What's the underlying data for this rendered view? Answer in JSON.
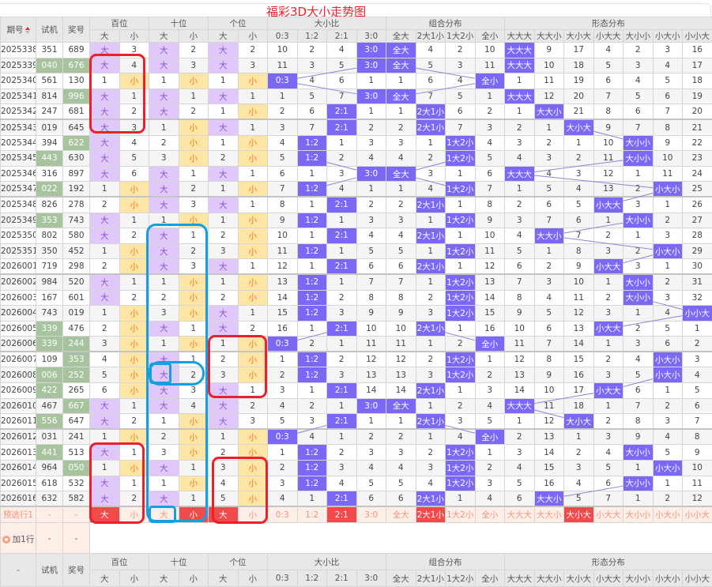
{
  "title": "福彩3D大小走势图",
  "header": {
    "issue": "期号",
    "test": "试机",
    "draw": "奖号",
    "groups": [
      "百位",
      "十位",
      "个位",
      "大小比",
      "组合分布",
      "形态分布"
    ],
    "sub": [
      "大",
      "小",
      "大",
      "小",
      "大",
      "小",
      "0:3",
      "1:2",
      "2:1",
      "3:0",
      "全大",
      "2大1小",
      "1大2小",
      "全小",
      "大大大",
      "大大小",
      "大小大",
      "小大大",
      "大小小",
      "小大小",
      "小小大"
    ],
    "sort_icon": "sort-arrows-icon"
  },
  "colors": {
    "big_hit": "#e1c8fb",
    "small_hit": "#fde5a6",
    "hit": "#7b68f5",
    "match": "#a7c49f",
    "selected": "#f04a4a",
    "trend_line": "#8c84d8",
    "annotation_red": "#e8222a",
    "annotation_blue": "#14a0e0"
  },
  "rows": [
    {
      "issue": "2025338",
      "test": "351",
      "draw": "689",
      "test_hl": false,
      "draw_hl": false,
      "cells": [
        "大",
        "3",
        "大",
        "2",
        "大",
        "2",
        "10",
        "2",
        "4",
        "3:0",
        "全大",
        "4",
        "2",
        "10",
        "大大大",
        "9",
        "17",
        "4",
        "2",
        "3",
        "16"
      ]
    },
    {
      "issue": "2025339",
      "test": "040",
      "draw": "676",
      "test_hl": true,
      "draw_hl": true,
      "cells": [
        "大",
        "4",
        "大",
        "3",
        "大",
        "3",
        "11",
        "3",
        "5",
        "3:0",
        "全大",
        "5",
        "3",
        "11",
        "大大大",
        "10",
        "18",
        "5",
        "3",
        "4",
        "17"
      ]
    },
    {
      "issue": "2025340",
      "test": "561",
      "draw": "130",
      "test_hl": false,
      "draw_hl": false,
      "cells": [
        "1",
        "小",
        "1",
        "小",
        "1",
        "小",
        "0:3",
        "4",
        "6",
        "1",
        "1",
        "6",
        "4",
        "全小",
        "1",
        "11",
        "19",
        "6",
        "4",
        "5",
        "18"
      ]
    },
    {
      "issue": "2025341",
      "test": "814",
      "draw": "996",
      "test_hl": false,
      "draw_hl": true,
      "cells": [
        "大",
        "1",
        "大",
        "1",
        "大",
        "1",
        "1",
        "5",
        "7",
        "3:0",
        "全大",
        "7",
        "5",
        "1",
        "大大大",
        "12",
        "20",
        "7",
        "5",
        "6",
        "19"
      ]
    },
    {
      "issue": "2025342",
      "test": "247",
      "draw": "681",
      "test_hl": false,
      "draw_hl": false,
      "cells": [
        "大",
        "2",
        "大",
        "2",
        "1",
        "小",
        "2",
        "6",
        "2:1",
        "1",
        "1",
        "2大1小",
        "6",
        "2",
        "1",
        "大大小",
        "21",
        "8",
        "6",
        "7",
        "20"
      ]
    },
    {
      "issue": "2025343",
      "test": "019",
      "draw": "645",
      "test_hl": false,
      "draw_hl": false,
      "cells": [
        "大",
        "3",
        "1",
        "小",
        "大",
        "1",
        "3",
        "7",
        "2:1",
        "2",
        "2",
        "2大1小",
        "7",
        "3",
        "2",
        "1",
        "大小大",
        "9",
        "7",
        "8",
        "21"
      ]
    },
    {
      "issue": "2025344",
      "test": "394",
      "draw": "622",
      "test_hl": false,
      "draw_hl": true,
      "cells": [
        "大",
        "4",
        "2",
        "小",
        "1",
        "小",
        "4",
        "1:2",
        "1",
        "3",
        "3",
        "1",
        "1大2小",
        "4",
        "3",
        "2",
        "1",
        "10",
        "大小小",
        "9",
        "22"
      ]
    },
    {
      "issue": "2025345",
      "test": "443",
      "draw": "630",
      "test_hl": true,
      "draw_hl": false,
      "cells": [
        "大",
        "5",
        "3",
        "小",
        "2",
        "小",
        "5",
        "1:2",
        "2",
        "4",
        "4",
        "2",
        "1大2小",
        "5",
        "4",
        "3",
        "2",
        "11",
        "大小小",
        "10",
        "23"
      ]
    },
    {
      "issue": "2025346",
      "test": "316",
      "draw": "897",
      "test_hl": false,
      "draw_hl": false,
      "cells": [
        "大",
        "6",
        "大",
        "1",
        "大",
        "1",
        "6",
        "1",
        "3",
        "3:0",
        "全大",
        "3",
        "1",
        "6",
        "大大大",
        "4",
        "3",
        "12",
        "1",
        "11",
        "24"
      ]
    },
    {
      "issue": "2025347",
      "test": "022",
      "draw": "192",
      "test_hl": true,
      "draw_hl": false,
      "cells": [
        "1",
        "小",
        "大",
        "2",
        "1",
        "小",
        "7",
        "1:2",
        "4",
        "1",
        "1",
        "4",
        "1大2小",
        "7",
        "1",
        "5",
        "4",
        "13",
        "2",
        "小大小",
        "25"
      ]
    },
    {
      "issue": "2025348",
      "test": "826",
      "draw": "278",
      "test_hl": false,
      "draw_hl": false,
      "cells": [
        "2",
        "小",
        "大",
        "3",
        "大",
        "1",
        "8",
        "1",
        "2:1",
        "2",
        "2",
        "2大1小",
        "1",
        "8",
        "2",
        "6",
        "5",
        "小大大",
        "3",
        "1",
        "26"
      ]
    },
    {
      "issue": "2025349",
      "test": "353",
      "draw": "743",
      "test_hl": true,
      "draw_hl": false,
      "cells": [
        "大",
        "1",
        "1",
        "小",
        "1",
        "小",
        "9",
        "1:2",
        "1",
        "3",
        "3",
        "1",
        "1大2小",
        "9",
        "3",
        "7",
        "6",
        "1",
        "大小小",
        "2",
        "27"
      ]
    },
    {
      "issue": "2025350",
      "test": "802",
      "draw": "580",
      "test_hl": false,
      "draw_hl": false,
      "cells": [
        "大",
        "2",
        "大",
        "1",
        "2",
        "小",
        "10",
        "1",
        "2:1",
        "4",
        "4",
        "2大1小",
        "1",
        "10",
        "4",
        "大大小",
        "7",
        "2",
        "1",
        "3",
        "28"
      ]
    },
    {
      "issue": "2025351",
      "test": "350",
      "draw": "452",
      "test_hl": false,
      "draw_hl": false,
      "cells": [
        "1",
        "小",
        "大",
        "2",
        "3",
        "小",
        "11",
        "1:2",
        "1",
        "5",
        "5",
        "1",
        "1大2小",
        "11",
        "5",
        "1",
        "8",
        "3",
        "2",
        "小大小",
        "29"
      ]
    },
    {
      "issue": "2026001",
      "test": "719",
      "draw": "298",
      "test_hl": false,
      "draw_hl": false,
      "cells": [
        "2",
        "小",
        "大",
        "3",
        "大",
        "1",
        "12",
        "1",
        "2:1",
        "6",
        "6",
        "2大1小",
        "1",
        "12",
        "6",
        "2",
        "9",
        "小大大",
        "3",
        "1",
        "30"
      ]
    },
    {
      "issue": "2026002",
      "test": "984",
      "draw": "520",
      "test_hl": false,
      "draw_hl": false,
      "cells": [
        "大",
        "1",
        "1",
        "小",
        "1",
        "小",
        "13",
        "1:2",
        "1",
        "7",
        "7",
        "1",
        "1大2小",
        "13",
        "7",
        "3",
        "10",
        "1",
        "大小小",
        "2",
        "31"
      ]
    },
    {
      "issue": "2026003",
      "test": "167",
      "draw": "601",
      "test_hl": false,
      "draw_hl": false,
      "cells": [
        "大",
        "2",
        "2",
        "小",
        "2",
        "小",
        "14",
        "1:2",
        "2",
        "8",
        "8",
        "2",
        "1大2小",
        "14",
        "8",
        "4",
        "11",
        "2",
        "大小小",
        "3",
        "32"
      ]
    },
    {
      "issue": "2026004",
      "test": "743",
      "draw": "019",
      "test_hl": false,
      "draw_hl": false,
      "cells": [
        "1",
        "小",
        "3",
        "小",
        "大",
        "1",
        "15",
        "1:2",
        "3",
        "9",
        "9",
        "3",
        "1大2小",
        "15",
        "9",
        "5",
        "12",
        "3",
        "1",
        "4",
        "小小大"
      ]
    },
    {
      "issue": "2026005",
      "test": "339",
      "draw": "476",
      "test_hl": true,
      "draw_hl": false,
      "cells": [
        "2",
        "小",
        "大",
        "1",
        "大",
        "2",
        "16",
        "1",
        "2:1",
        "10",
        "10",
        "2大1小",
        "1",
        "16",
        "10",
        "6",
        "13",
        "小大大",
        "2",
        "5",
        "1"
      ]
    },
    {
      "issue": "2026006",
      "test": "339",
      "draw": "244",
      "test_hl": true,
      "draw_hl": true,
      "cells": [
        "3",
        "小",
        "1",
        "小",
        "1",
        "小",
        "0:3",
        "2",
        "1",
        "11",
        "11",
        "1",
        "2",
        "全小",
        "11",
        "7",
        "14",
        "1",
        "3",
        "6",
        "2"
      ]
    },
    {
      "issue": "2026007",
      "test": "109",
      "draw": "353",
      "test_hl": false,
      "draw_hl": true,
      "cells": [
        "4",
        "小",
        "大",
        "1",
        "2",
        "小",
        "1",
        "1:2",
        "2",
        "12",
        "12",
        "2",
        "1大2小",
        "1",
        "12",
        "8",
        "15",
        "2",
        "4",
        "小大小",
        "3"
      ]
    },
    {
      "issue": "2026008",
      "test": "006",
      "draw": "252",
      "test_hl": true,
      "draw_hl": true,
      "cells": [
        "5",
        "小",
        "大",
        "2",
        "3",
        "小",
        "2",
        "1:2",
        "3",
        "13",
        "13",
        "3",
        "1大2小",
        "2",
        "13",
        "9",
        "16",
        "3",
        "5",
        "小大小",
        "4"
      ]
    },
    {
      "issue": "2026009",
      "test": "422",
      "draw": "265",
      "test_hl": true,
      "draw_hl": false,
      "cells": [
        "6",
        "小",
        "大",
        "3",
        "大",
        "1",
        "3",
        "1",
        "2:1",
        "14",
        "14",
        "2大1小",
        "1",
        "3",
        "14",
        "10",
        "17",
        "小大大",
        "6",
        "1",
        "5"
      ]
    },
    {
      "issue": "2026010",
      "test": "467",
      "draw": "667",
      "test_hl": false,
      "draw_hl": true,
      "cells": [
        "大",
        "1",
        "大",
        "4",
        "大",
        "2",
        "4",
        "2",
        "1",
        "3:0",
        "全大",
        "1",
        "2",
        "4",
        "大大大",
        "11",
        "18",
        "1",
        "7",
        "2",
        "6"
      ]
    },
    {
      "issue": "2026011",
      "test": "556",
      "draw": "647",
      "test_hl": true,
      "draw_hl": false,
      "cells": [
        "大",
        "2",
        "1",
        "小",
        "大",
        "3",
        "5",
        "3",
        "2:1",
        "1",
        "1",
        "2大1小",
        "3",
        "5",
        "1",
        "12",
        "大小大",
        "2",
        "8",
        "3",
        "7"
      ]
    },
    {
      "issue": "2026012",
      "test": "031",
      "draw": "241",
      "test_hl": false,
      "draw_hl": false,
      "cells": [
        "1",
        "小",
        "2",
        "小",
        "1",
        "小",
        "0:3",
        "4",
        "1",
        "2",
        "2",
        "1",
        "4",
        "全小",
        "2",
        "13",
        "1",
        "3",
        "9",
        "4",
        "8"
      ]
    },
    {
      "issue": "2026013",
      "test": "441",
      "draw": "513",
      "test_hl": true,
      "draw_hl": false,
      "cells": [
        "大",
        "1",
        "3",
        "小",
        "2",
        "小",
        "1",
        "1:2",
        "2",
        "3",
        "3",
        "2",
        "1大2小",
        "1",
        "3",
        "14",
        "2",
        "4",
        "大小小",
        "5",
        "9"
      ]
    },
    {
      "issue": "2026014",
      "test": "964",
      "draw": "050",
      "test_hl": false,
      "draw_hl": true,
      "cells": [
        "1",
        "小",
        "大",
        "1",
        "3",
        "小",
        "2",
        "1:2",
        "3",
        "4",
        "4",
        "3",
        "1大2小",
        "2",
        "4",
        "15",
        "3",
        "5",
        "1",
        "小大小",
        "10"
      ]
    },
    {
      "issue": "2026015",
      "test": "618",
      "draw": "532",
      "test_hl": false,
      "draw_hl": false,
      "cells": [
        "大",
        "1",
        "1",
        "小",
        "4",
        "小",
        "3",
        "1:2",
        "4",
        "5",
        "5",
        "4",
        "1大2小",
        "3",
        "5",
        "16",
        "4",
        "6",
        "大小小",
        "1",
        "11"
      ]
    },
    {
      "issue": "2026016",
      "test": "632",
      "draw": "582",
      "test_hl": false,
      "draw_hl": false,
      "cells": [
        "大",
        "2",
        "大",
        "1",
        "5",
        "小",
        "4",
        "1",
        "2:1",
        "6",
        "6",
        "2大1小",
        "1",
        "4",
        "6",
        "大大小",
        "5",
        "7",
        "1",
        "2",
        "12"
      ]
    }
  ],
  "preselect": {
    "label": "预选行1",
    "test": "-",
    "draw": "-",
    "cells": [
      "大",
      "小",
      "大",
      "小",
      "大",
      "小",
      "0:3",
      "1:2",
      "2:1",
      "3:0",
      "全大",
      "2大1小",
      "1大2小",
      "全小",
      "大大大",
      "大大小",
      "大小大",
      "小大大",
      "大小小",
      "小大小",
      "小小大"
    ],
    "selected": [
      true,
      false,
      false,
      true,
      true,
      false,
      false,
      false,
      true,
      false,
      false,
      true,
      false,
      false,
      false,
      false,
      true,
      false,
      false,
      false,
      false
    ]
  },
  "add_row": {
    "label": "加1行",
    "icon": "add-circle-icon",
    "test": "-",
    "draw": "-"
  },
  "footer": {
    "first": "-",
    "test": "试机",
    "draw": "奖号"
  }
}
